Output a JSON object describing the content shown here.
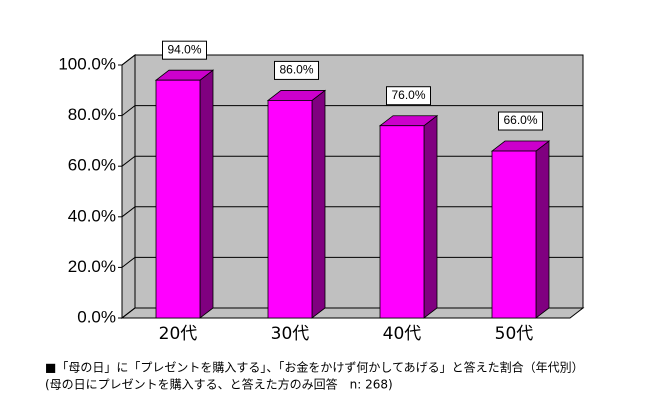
{
  "chart_data": {
    "type": "bar3d",
    "categories": [
      "20代",
      "30代",
      "40代",
      "50代"
    ],
    "values": [
      94,
      86,
      76,
      66
    ],
    "value_labels": [
      "94.0%",
      "86.0%",
      "76.0%",
      "66.0%"
    ],
    "color": "#ff00ff",
    "ylim": [
      0,
      100
    ],
    "yticks": [
      {
        "value": 0,
        "label": "0.0%"
      },
      {
        "value": 20,
        "label": "20.0%"
      },
      {
        "value": 40,
        "label": "40.0%"
      },
      {
        "value": 60,
        "label": "60.0%"
      },
      {
        "value": 80,
        "label": "80.0%"
      },
      {
        "value": 100,
        "label": "100.0%"
      }
    ],
    "grid": true,
    "caption": "■「母の日」に「プレゼントを購入する」、「お金をかけず何かしてあげる」と答えた割合（年代別）",
    "note": "(母の日にプレゼントを購入する、と答えた方のみ回答　n: 268)"
  }
}
